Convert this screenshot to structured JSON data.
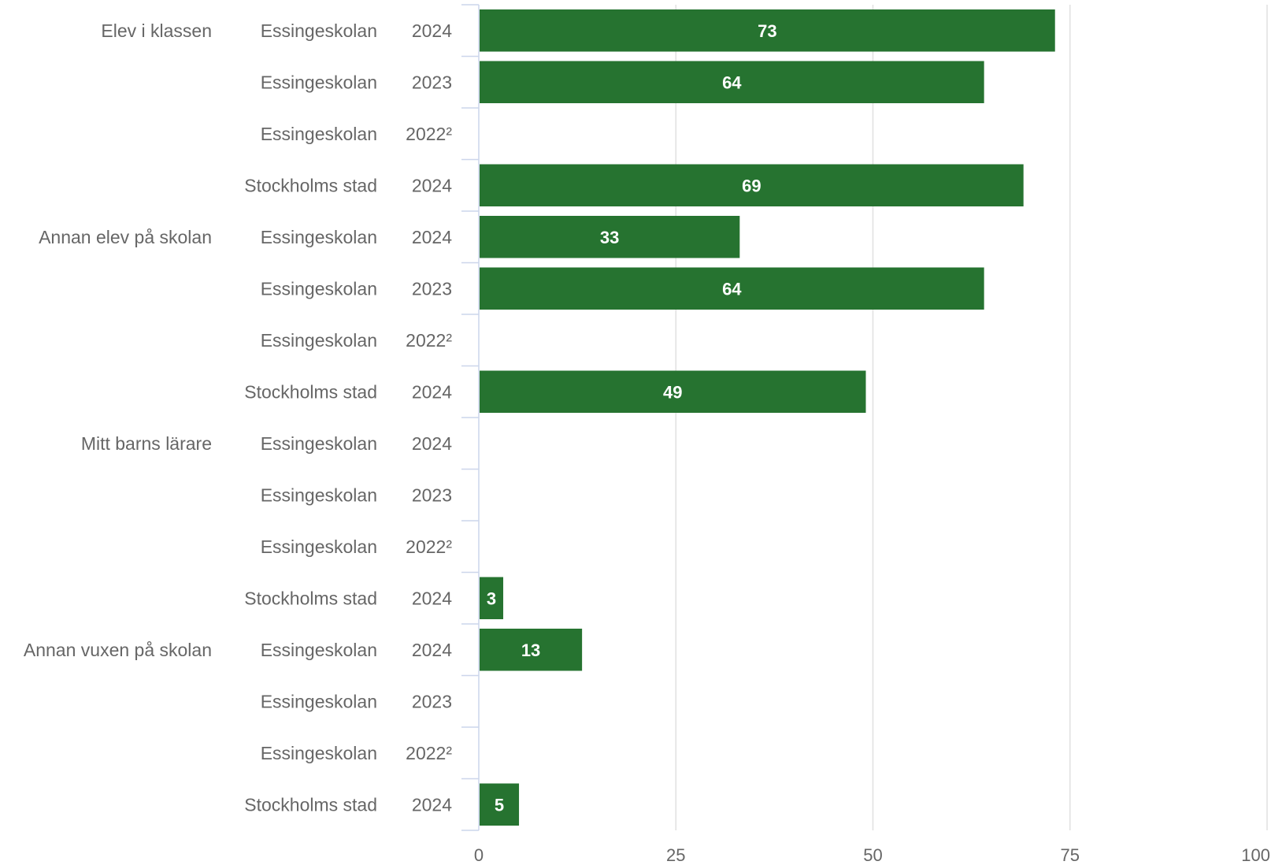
{
  "colors": {
    "bar": "#267330",
    "grid": "#e0e0e0",
    "axis": "#ccd6eb",
    "text": "#666666",
    "bar_label": "#ffffff"
  },
  "chart_data": {
    "type": "bar",
    "orientation": "horizontal",
    "grid": true,
    "xlim": [
      0,
      100
    ],
    "x_ticks": [
      0,
      25,
      50,
      75,
      100
    ],
    "groups": [
      {
        "category": "Elev i klassen",
        "rows": [
          {
            "school": "Essingeskolan",
            "year": "2024",
            "value": 73
          },
          {
            "school": "Essingeskolan",
            "year": "2023",
            "value": 64
          },
          {
            "school": "Essingeskolan",
            "year": "2022²",
            "value": null
          },
          {
            "school": "Stockholms stad",
            "year": "2024",
            "value": 69
          }
        ]
      },
      {
        "category": "Annan elev på skolan",
        "rows": [
          {
            "school": "Essingeskolan",
            "year": "2024",
            "value": 33
          },
          {
            "school": "Essingeskolan",
            "year": "2023",
            "value": 64
          },
          {
            "school": "Essingeskolan",
            "year": "2022²",
            "value": null
          },
          {
            "school": "Stockholms stad",
            "year": "2024",
            "value": 49
          }
        ]
      },
      {
        "category": "Mitt barns lärare",
        "rows": [
          {
            "school": "Essingeskolan",
            "year": "2024",
            "value": null
          },
          {
            "school": "Essingeskolan",
            "year": "2023",
            "value": null
          },
          {
            "school": "Essingeskolan",
            "year": "2022²",
            "value": null
          },
          {
            "school": "Stockholms stad",
            "year": "2024",
            "value": 3
          }
        ]
      },
      {
        "category": "Annan vuxen på skolan",
        "rows": [
          {
            "school": "Essingeskolan",
            "year": "2024",
            "value": 13
          },
          {
            "school": "Essingeskolan",
            "year": "2023",
            "value": null
          },
          {
            "school": "Essingeskolan",
            "year": "2022²",
            "value": null
          },
          {
            "school": "Stockholms stad",
            "year": "2024",
            "value": 5
          }
        ]
      }
    ]
  }
}
